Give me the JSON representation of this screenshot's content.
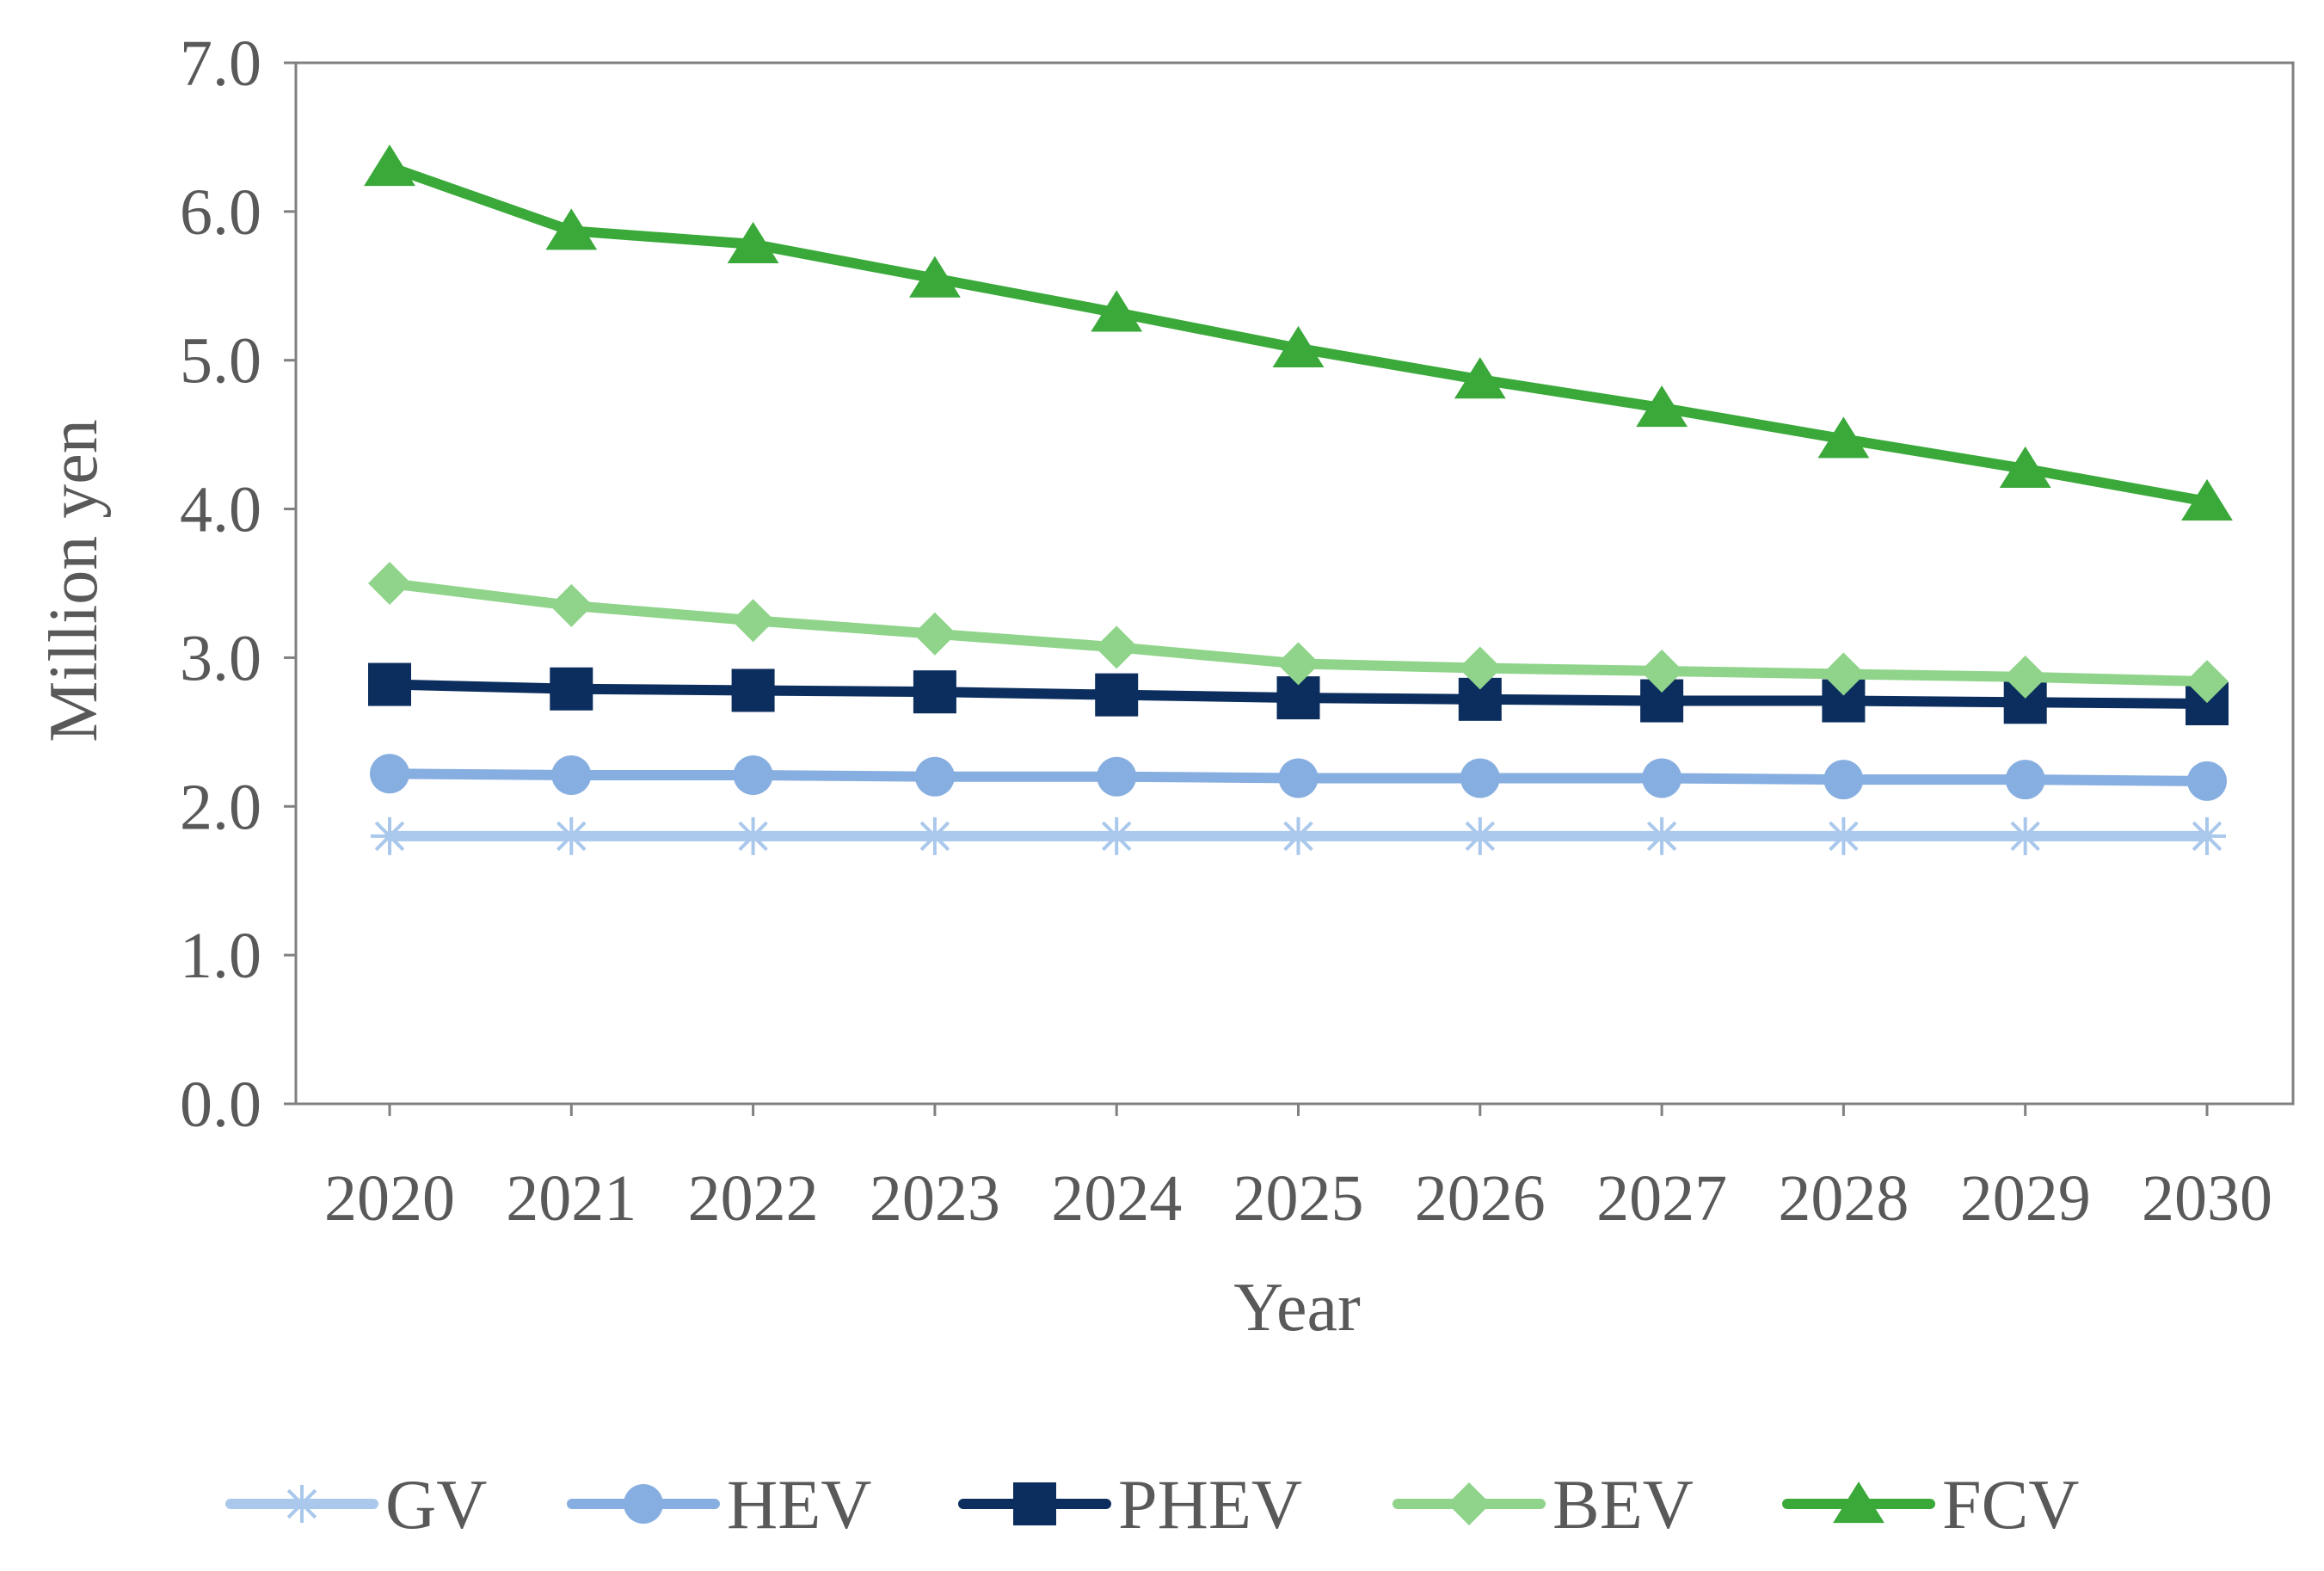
{
  "chart_data": {
    "type": "line",
    "title": "",
    "xlabel": "Year",
    "ylabel": "Million yen",
    "ylim": [
      0,
      7
    ],
    "yticks": [
      "0.0",
      "1.0",
      "2.0",
      "3.0",
      "4.0",
      "5.0",
      "6.0",
      "7.0"
    ],
    "grid": false,
    "legend_position": "bottom",
    "categories": [
      "2020",
      "2021",
      "2022",
      "2023",
      "2024",
      "2025",
      "2026",
      "2027",
      "2028",
      "2029",
      "2030"
    ],
    "series": [
      {
        "name": "GV",
        "color": "#a9c8ec",
        "marker": "asterisk",
        "values": [
          1.8,
          1.8,
          1.8,
          1.8,
          1.8,
          1.8,
          1.8,
          1.8,
          1.8,
          1.8,
          1.8
        ]
      },
      {
        "name": "HEV",
        "color": "#86aee0",
        "marker": "circle",
        "values": [
          2.22,
          2.21,
          2.21,
          2.2,
          2.2,
          2.19,
          2.19,
          2.19,
          2.18,
          2.18,
          2.17
        ]
      },
      {
        "name": "PHEV",
        "color": "#0b2e5e",
        "marker": "square",
        "values": [
          2.82,
          2.79,
          2.78,
          2.77,
          2.75,
          2.73,
          2.72,
          2.71,
          2.71,
          2.7,
          2.69
        ]
      },
      {
        "name": "BEV",
        "color": "#8fd48a",
        "marker": "diamond",
        "values": [
          3.5,
          3.35,
          3.25,
          3.16,
          3.07,
          2.96,
          2.93,
          2.91,
          2.89,
          2.87,
          2.84
        ]
      },
      {
        "name": "FCV",
        "color": "#3aa93a",
        "marker": "triangle",
        "values": [
          6.3,
          5.87,
          5.78,
          5.55,
          5.32,
          5.08,
          4.87,
          4.68,
          4.47,
          4.27,
          4.05
        ]
      }
    ]
  }
}
